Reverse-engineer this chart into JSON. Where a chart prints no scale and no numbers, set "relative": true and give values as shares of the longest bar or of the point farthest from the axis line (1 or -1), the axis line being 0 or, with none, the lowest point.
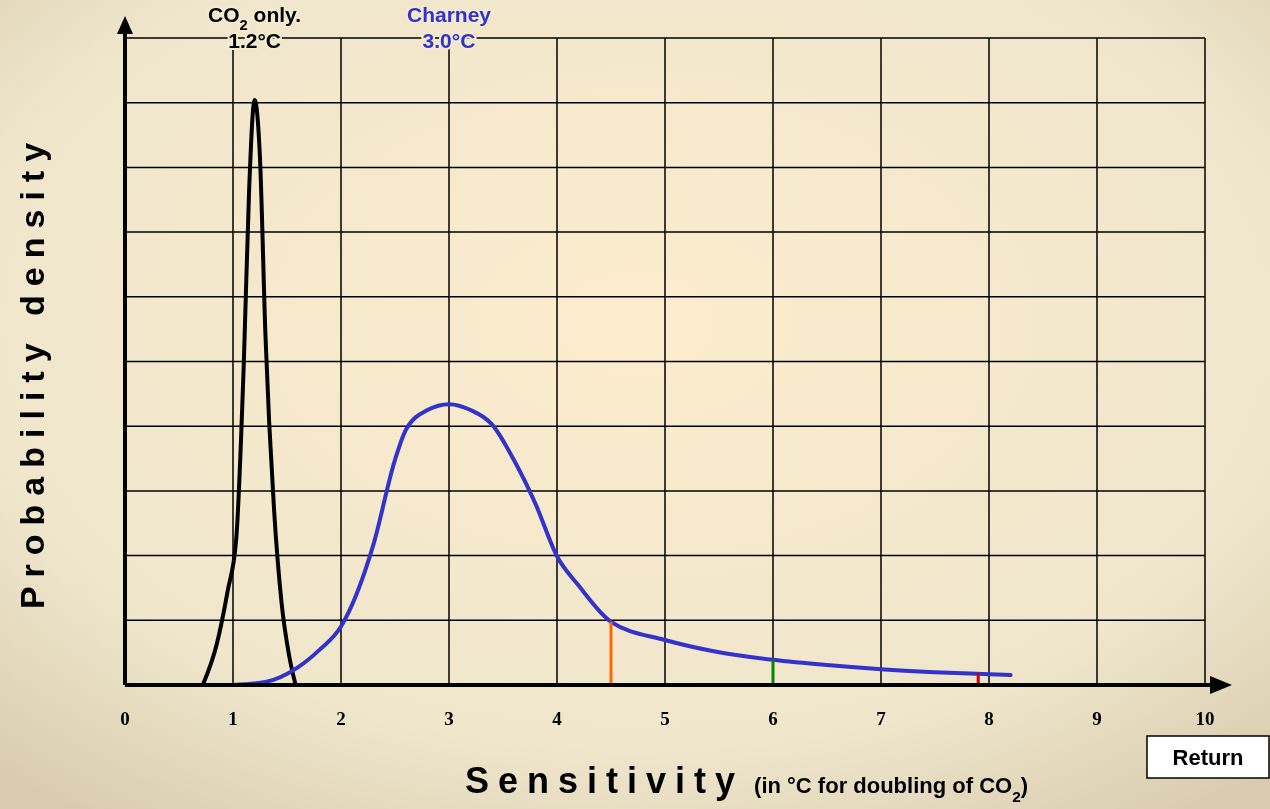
{
  "chart_data": {
    "type": "line",
    "relative": true,
    "ylabel": "Probability density",
    "xlabel": "Sensitivity (in °C for doubling of CO$_{2}$)",
    "xlim": [
      0,
      10
    ],
    "xticks": [
      0,
      1,
      2,
      3,
      4,
      5,
      6,
      7,
      8,
      9,
      10
    ],
    "grid": true,
    "marker": "none",
    "line_style": "solid",
    "series": [
      {
        "color": "#000000",
        "x": [
          0.72,
          0.85,
          0.95,
          1.03,
          1.1,
          1.15,
          1.2,
          1.25,
          1.3,
          1.38,
          1.45,
          1.52,
          1.58
        ],
        "values": [
          0,
          0.07,
          0.16,
          0.25,
          0.55,
          0.85,
          1,
          0.9,
          0.6,
          0.3,
          0.14,
          0.05,
          0
        ]
      },
      {
        "color": "#3333cc",
        "x": [
          1.0,
          1.3,
          1.6,
          1.8,
          2.0,
          2.3,
          2.5,
          2.6,
          2.8,
          3.0,
          3.2,
          3.4,
          3.6,
          3.8,
          4.0,
          4.2,
          4.5,
          5.0,
          5.5,
          6.0,
          6.5,
          7.0,
          7.5,
          8.2
        ],
        "values": [
          0,
          0.005,
          0.03,
          0.06,
          0.1,
          0.24,
          0.385,
          0.436,
          0.47,
          0.48,
          0.47,
          0.445,
          0.385,
          0.31,
          0.22,
          0.17,
          0.108,
          0.077,
          0.056,
          0.043,
          0.034,
          0.027,
          0.022,
          0.017
        ]
      },
      {
        "type": "bar",
        "x": [
          4.5,
          6,
          7.9
        ],
        "values": [
          0.108,
          0.043,
          0.02
        ],
        "colors": [
          "#ff6600",
          "#008800",
          "#cc0000"
        ]
      }
    ],
    "annotations": [
      "CO$_{2}$ only.\n1.2°C",
      "Charney\n3.0°C",
      "Return"
    ]
  }
}
